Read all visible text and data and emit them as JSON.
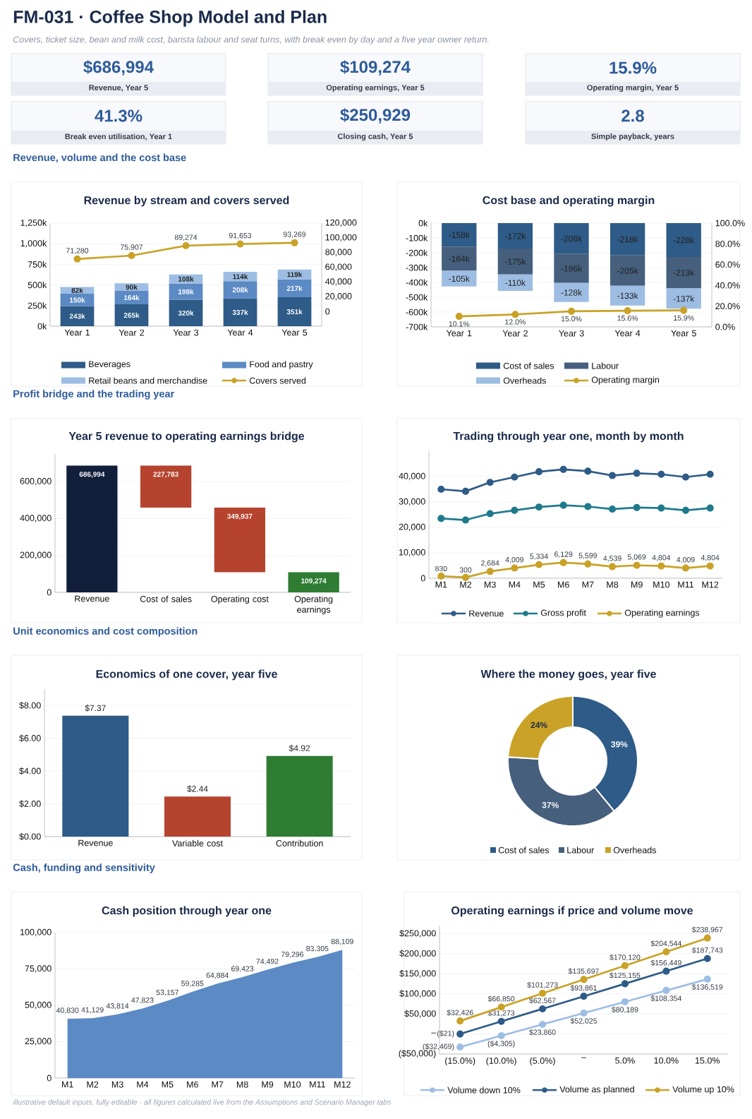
{
  "chart_data": [
    {
      "type": "other",
      "title": "FM-031  ·  Coffee Shop Model and Plan",
      "subtitle": "Covers, ticket size, bean and milk cost, barista labour and seat turns, with break even by day and a five year owner return.",
      "annotations": [
        "$686,994",
        "Revenue, Year 5",
        "$109,274",
        "Operating earnings, Year 5",
        "15.9%",
        "Operating margin, Year 5",
        "41.3%",
        "Break even utilisation, Year 1",
        "$250,929",
        "Closing cash, Year 5",
        "2.8",
        "Simple payback, years",
        "Revenue, volume and the cost base",
        "Profit bridge and the trading year",
        "Unit economics and cost composition",
        "Cash, funding and sensitivity",
        "illustrative default inputs, fully editable  ·  all figures calculated live from the Assumptions and Scenario Manager tabs"
      ]
    },
    {
      "type": "bar",
      "title": "Revenue by stream and covers served",
      "stacked": true,
      "categories": [
        "Year 1",
        "Year 2",
        "Year 3",
        "Year 4",
        "Year 5"
      ],
      "series": [
        {
          "name": "Beverages",
          "color": "#2e5b87",
          "values": [
            243000,
            265000,
            320000,
            337000,
            351000
          ],
          "value_labels": [
            "243k",
            "265k",
            "320k",
            "337k",
            "351k"
          ]
        },
        {
          "name": "Food and pastry",
          "color": "#5b8ac4",
          "values": [
            150000,
            164000,
            198000,
            208000,
            217000
          ],
          "value_labels": [
            "150k",
            "164k",
            "198k",
            "208k",
            "217k"
          ]
        },
        {
          "name": "Retail beans and merchandise",
          "color": "#9dbde3",
          "values": [
            82000,
            90000,
            108000,
            114000,
            119000
          ],
          "value_labels": [
            "82k",
            "90k",
            "108k",
            "114k",
            "119k"
          ]
        },
        {
          "name": "Covers served",
          "type": "line",
          "axis": "y2",
          "color": "#c9a227",
          "values": [
            71280,
            75907,
            89274,
            91653,
            93269
          ],
          "value_labels": [
            "71,280",
            "75,907",
            "89,274",
            "91,653",
            "93,269"
          ]
        }
      ],
      "ylim": [
        0,
        1250000
      ],
      "yticks": [
        {
          "value": 0,
          "label": "0k"
        },
        {
          "value": 250000,
          "label": "250k"
        },
        {
          "value": 500000,
          "label": "500k"
        },
        {
          "value": 750000,
          "label": "750k"
        },
        {
          "value": 1000000,
          "label": "1,000k"
        },
        {
          "value": 1250000,
          "label": "1,250k"
        }
      ],
      "y2lim": [
        -20000,
        120000
      ],
      "y2ticks": [
        0,
        {
          "value": 20000,
          "label": "20,000"
        },
        {
          "value": 40000,
          "label": "40,000"
        },
        {
          "value": 60000,
          "label": "60,000"
        },
        {
          "value": 80000,
          "label": "80,000"
        },
        {
          "value": 100000,
          "label": "100,000"
        },
        {
          "value": 120000,
          "label": "120,000"
        }
      ],
      "grid": "y",
      "legend": "bottom",
      "marker": "circle"
    },
    {
      "type": "bar",
      "title": "Cost base and operating margin",
      "stacked": true,
      "categories": [
        "Year 1",
        "Year 2",
        "Year 3",
        "Year 4",
        "Year 5"
      ],
      "series": [
        {
          "name": "Cost of sales",
          "color": "#2e5b87",
          "values": [
            -158000,
            -172000,
            -208000,
            -218000,
            -228000
          ],
          "value_labels": [
            "-158k",
            "-172k",
            "-208k",
            "-218k",
            "-228k"
          ]
        },
        {
          "name": "Labour",
          "color": "#455f7d",
          "values": [
            -164000,
            -175000,
            -196000,
            -205000,
            -213000
          ],
          "value_labels": [
            "-164k",
            "-175k",
            "-196k",
            "-205k",
            "-213k"
          ]
        },
        {
          "name": "Overheads",
          "color": "#9dbde3",
          "values": [
            -105000,
            -110000,
            -128000,
            -133000,
            -137000
          ],
          "value_labels": [
            "-105k",
            "-110k",
            "-128k",
            "-133k",
            "-137k"
          ]
        },
        {
          "name": "Operating margin",
          "type": "line",
          "axis": "y2",
          "color": "#c9a227",
          "values": [
            10.1,
            12.0,
            15.0,
            15.6,
            15.9
          ],
          "value_labels": [
            "10.1%",
            "12.0%",
            "15.0%",
            "15.6%",
            "15.9%"
          ]
        }
      ],
      "ylim": [
        -700000,
        0
      ],
      "yticks": [
        {
          "value": -700000,
          "label": "-700k"
        },
        {
          "value": -600000,
          "label": "-600k"
        },
        {
          "value": -500000,
          "label": "-500k"
        },
        {
          "value": -400000,
          "label": "-400k"
        },
        {
          "value": -300000,
          "label": "-300k"
        },
        {
          "value": -200000,
          "label": "-200k"
        },
        {
          "value": -100000,
          "label": "-100k"
        },
        {
          "value": 0,
          "label": "0k"
        }
      ],
      "y2lim": [
        0,
        100
      ],
      "y2ticks": [
        {
          "value": 0,
          "label": "0.0%"
        },
        {
          "value": 20,
          "label": "20.0%"
        },
        {
          "value": 40,
          "label": "40.0%"
        },
        {
          "value": 60,
          "label": "60.0%"
        },
        {
          "value": 80,
          "label": "80.0%"
        },
        {
          "value": 100,
          "label": "100.0%"
        }
      ],
      "grid": "y",
      "legend": "bottom",
      "marker": "circle"
    },
    {
      "type": "bar",
      "title": "Year 5 revenue to operating earnings bridge",
      "categories": [
        "Revenue",
        "Cost of sales",
        "Operating cost",
        "Operating earnings"
      ],
      "values": [
        686994,
        227783,
        349937,
        109274
      ],
      "base": [
        0,
        459211,
        109274,
        0
      ],
      "colors": [
        "#111f3a",
        "#b5432e",
        "#b5432e",
        "#2e7d32"
      ],
      "value_labels": [
        "686,994",
        "227,783",
        "349,937",
        "109,274"
      ],
      "ylim": [
        0,
        750000
      ],
      "yticks": [
        0,
        {
          "value": 200000,
          "label": "200,000"
        },
        {
          "value": 400000,
          "label": "400,000"
        },
        {
          "value": 600000,
          "label": "600,000"
        }
      ],
      "grid": "y"
    },
    {
      "type": "line",
      "title": "Trading through year one, month by month",
      "categories": [
        "M1",
        "M2",
        "M3",
        "M4",
        "M5",
        "M6",
        "M7",
        "M8",
        "M9",
        "M10",
        "M11",
        "M12"
      ],
      "series": [
        {
          "name": "Revenue",
          "color": "#2e5b87",
          "values": [
            35000,
            34200,
            37700,
            39800,
            41900,
            42800,
            42100,
            40400,
            41300,
            40900,
            39800,
            40900
          ]
        },
        {
          "name": "Gross profit",
          "color": "#1f7a8c",
          "values": [
            23500,
            22900,
            25400,
            26700,
            28000,
            28700,
            28200,
            27200,
            27800,
            27600,
            26700,
            27600
          ]
        },
        {
          "name": "Operating earnings",
          "color": "#c9a227",
          "values": [
            830,
            300,
            2684,
            4009,
            5334,
            6129,
            5599,
            4539,
            5069,
            4804,
            4009,
            4804
          ],
          "value_labels": [
            "830",
            "300",
            "2,684",
            "4,009",
            "5,334",
            "6,129",
            "5,599",
            "4,539",
            "5,069",
            "4,804",
            "4,009",
            "4,804"
          ]
        }
      ],
      "ylim": [
        0,
        50000
      ],
      "yticks": [
        0,
        {
          "value": 10000,
          "label": "10,000"
        },
        {
          "value": 20000,
          "label": "20,000"
        },
        {
          "value": 30000,
          "label": "30,000"
        },
        {
          "value": 40000,
          "label": "40,000"
        }
      ],
      "grid": "y",
      "legend": "bottom",
      "marker": "circle"
    },
    {
      "type": "bar",
      "title": "Economics of one cover, year five",
      "categories": [
        "Revenue",
        "Variable cost",
        "Contribution"
      ],
      "values": [
        7.37,
        2.44,
        4.92
      ],
      "colors": [
        "#2e5b87",
        "#b5432e",
        "#2e7d32"
      ],
      "value_labels": [
        "$7.37",
        "$2.44",
        "$4.92"
      ],
      "ylim": [
        0,
        9
      ],
      "yticks": [
        {
          "value": 0,
          "label": "$0.00"
        },
        {
          "value": 2,
          "label": "$2.00"
        },
        {
          "value": 4,
          "label": "$4.00"
        },
        {
          "value": 6,
          "label": "$6.00"
        },
        {
          "value": 8,
          "label": "$8.00"
        }
      ],
      "grid": "y"
    },
    {
      "type": "donut",
      "title": "Where the money goes, year five",
      "categories": [
        "Cost of sales",
        "Labour",
        "Overheads"
      ],
      "values": [
        39,
        37,
        24
      ],
      "colors": [
        "#2e5b87",
        "#455f7d",
        "#c9a227"
      ],
      "value_labels": [
        "39%",
        "37%",
        "24%"
      ],
      "legend": "bottom"
    },
    {
      "type": "area",
      "title": "Cash position through year one",
      "categories": [
        "M1",
        "M2",
        "M3",
        "M4",
        "M5",
        "M6",
        "M7",
        "M8",
        "M9",
        "M10",
        "M11",
        "M12"
      ],
      "values": [
        40830,
        41129,
        43814,
        47823,
        53157,
        59285,
        64884,
        69423,
        74492,
        79296,
        83305,
        88109
      ],
      "color": "#5b8ac4",
      "value_labels": [
        "40,830",
        "41,129",
        "43,814",
        "47,823",
        "53,157",
        "59,285",
        "64,884",
        "69,423",
        "74,492",
        "79,296",
        "83,305",
        "88,109"
      ],
      "ylim": [
        0,
        100000
      ],
      "yticks": [
        0,
        {
          "value": 25000,
          "label": "25,000"
        },
        {
          "value": 50000,
          "label": "50,000"
        },
        {
          "value": 75000,
          "label": "75,000"
        },
        {
          "value": 100000,
          "label": "100,000"
        }
      ],
      "grid": "y"
    },
    {
      "type": "line",
      "title": "Operating earnings if price and volume move",
      "categories": [
        "(15.0%)",
        "(10.0%)",
        "(5.0%)",
        "–",
        "5.0%",
        "10.0%",
        "15.0%"
      ],
      "series": [
        {
          "name": "Volume down 10%",
          "color": "#9dbde3",
          "values": [
            -32469,
            -4305,
            23860,
            52025,
            80189,
            108354,
            136519
          ],
          "value_labels": [
            "($32,469)",
            "($4,305)",
            "$23,860",
            "$52,025",
            "$80,189",
            "$108,354",
            "$136,519"
          ]
        },
        {
          "name": "Volume as planned",
          "color": "#2e5b87",
          "values": [
            -21,
            31273,
            62567,
            93861,
            125155,
            156449,
            187743
          ],
          "value_labels": [
            "($21)",
            "$31,273",
            "$62,567",
            "$93,861",
            "$125,155",
            "$156,449",
            "$187,743"
          ]
        },
        {
          "name": "Volume up 10%",
          "color": "#c9a227",
          "values": [
            32426,
            66850,
            101273,
            135697,
            170120,
            204544,
            238967
          ],
          "value_labels": [
            "$32,426",
            "$66,850",
            "$101,273",
            "$135,697",
            "$170,120",
            "$204,544",
            "$238,967"
          ]
        }
      ],
      "ylim": [
        -50000,
        270000
      ],
      "yticks": [
        {
          "value": -50000,
          "label": "($50,000)"
        },
        {
          "value": 0,
          "label": "–"
        },
        {
          "value": 50000,
          "label": "$50,000"
        },
        {
          "value": 100000,
          "label": "$100,000"
        },
        {
          "value": 150000,
          "label": "$150,000"
        },
        {
          "value": 200000,
          "label": "$200,000"
        },
        {
          "value": 250000,
          "label": "$250,000"
        }
      ],
      "grid": "y",
      "legend": "bottom",
      "marker": "circle"
    }
  ]
}
